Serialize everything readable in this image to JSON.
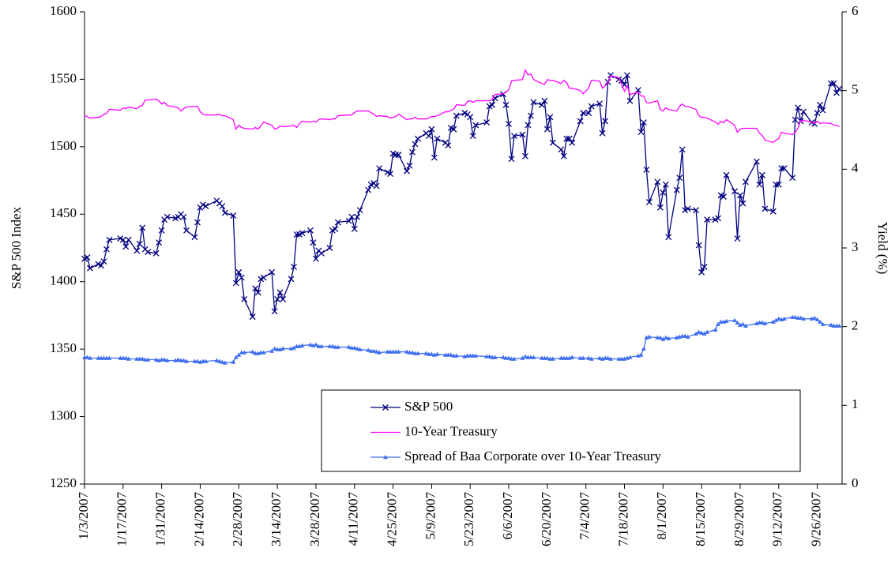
{
  "chart_data": {
    "type": "line",
    "y_label": "S&P 500 Index",
    "y2_label": "Yield (%)",
    "x": [
      "1/3/2007",
      "1/4/2007",
      "1/5/2007",
      "1/8/2007",
      "1/9/2007",
      "1/10/2007",
      "1/11/2007",
      "1/12/2007",
      "1/16/2007",
      "1/17/2007",
      "1/18/2007",
      "1/19/2007",
      "1/22/2007",
      "1/23/2007",
      "1/24/2007",
      "1/25/2007",
      "1/26/2007",
      "1/29/2007",
      "1/30/2007",
      "1/31/2007",
      "2/1/2007",
      "2/2/2007",
      "2/5/2007",
      "2/6/2007",
      "2/7/2007",
      "2/8/2007",
      "2/9/2007",
      "2/12/2007",
      "2/13/2007",
      "2/14/2007",
      "2/15/2007",
      "2/16/2007",
      "2/20/2007",
      "2/21/2007",
      "2/22/2007",
      "2/23/2007",
      "2/26/2007",
      "2/27/2007",
      "2/28/2007",
      "3/1/2007",
      "3/2/2007",
      "3/5/2007",
      "3/6/2007",
      "3/7/2007",
      "3/8/2007",
      "3/9/2007",
      "3/12/2007",
      "3/13/2007",
      "3/14/2007",
      "3/15/2007",
      "3/16/2007",
      "3/19/2007",
      "3/20/2007",
      "3/21/2007",
      "3/22/2007",
      "3/23/2007",
      "3/26/2007",
      "3/27/2007",
      "3/28/2007",
      "3/29/2007",
      "3/30/2007",
      "4/2/2007",
      "4/3/2007",
      "4/4/2007",
      "4/5/2007",
      "4/9/2007",
      "4/10/2007",
      "4/11/2007",
      "4/12/2007",
      "4/13/2007",
      "4/16/2007",
      "4/17/2007",
      "4/18/2007",
      "4/19/2007",
      "4/20/2007",
      "4/23/2007",
      "4/24/2007",
      "4/25/2007",
      "4/26/2007",
      "4/27/2007",
      "4/30/2007",
      "5/1/2007",
      "5/2/2007",
      "5/3/2007",
      "5/4/2007",
      "5/7/2007",
      "5/8/2007",
      "5/9/2007",
      "5/10/2007",
      "5/11/2007",
      "5/14/2007",
      "5/15/2007",
      "5/16/2007",
      "5/17/2007",
      "5/18/2007",
      "5/21/2007",
      "5/22/2007",
      "5/23/2007",
      "5/24/2007",
      "5/25/2007",
      "5/29/2007",
      "5/30/2007",
      "5/31/2007",
      "6/1/2007",
      "6/4/2007",
      "6/5/2007",
      "6/6/2007",
      "6/7/2007",
      "6/8/2007",
      "6/11/2007",
      "6/12/2007",
      "6/13/2007",
      "6/14/2007",
      "6/15/2007",
      "6/18/2007",
      "6/19/2007",
      "6/20/2007",
      "6/21/2007",
      "6/22/2007",
      "6/25/2007",
      "6/26/2007",
      "6/27/2007",
      "6/28/2007",
      "6/29/2007",
      "7/2/2007",
      "7/3/2007",
      "7/5/2007",
      "7/6/2007",
      "7/9/2007",
      "7/10/2007",
      "7/11/2007",
      "7/12/2007",
      "7/13/2007",
      "7/16/2007",
      "7/17/2007",
      "7/18/2007",
      "7/19/2007",
      "7/20/2007",
      "7/23/2007",
      "7/24/2007",
      "7/25/2007",
      "7/26/2007",
      "7/27/2007",
      "7/30/2007",
      "7/31/2007",
      "8/1/2007",
      "8/2/2007",
      "8/3/2007",
      "8/6/2007",
      "8/7/2007",
      "8/8/2007",
      "8/9/2007",
      "8/10/2007",
      "8/13/2007",
      "8/14/2007",
      "8/15/2007",
      "8/16/2007",
      "8/17/2007",
      "8/20/2007",
      "8/21/2007",
      "8/22/2007",
      "8/23/2007",
      "8/24/2007",
      "8/27/2007",
      "8/28/2007",
      "8/29/2007",
      "8/30/2007",
      "8/31/2007",
      "9/4/2007",
      "9/5/2007",
      "9/6/2007",
      "9/7/2007",
      "9/10/2007",
      "9/11/2007",
      "9/12/2007",
      "9/13/2007",
      "9/14/2007",
      "9/17/2007",
      "9/18/2007",
      "9/19/2007",
      "9/20/2007",
      "9/21/2007",
      "9/24/2007",
      "9/25/2007",
      "9/26/2007",
      "9/27/2007",
      "9/28/2007",
      "10/1/2007",
      "10/2/2007",
      "10/3/2007",
      "10/4/2007"
    ],
    "xlim": [
      "1/3/2007",
      "10/5/2007"
    ],
    "xticks": [
      "1/3/2007",
      "1/17/2007",
      "1/31/2007",
      "2/14/2007",
      "2/28/2007",
      "3/14/2007",
      "3/28/2007",
      "4/11/2007",
      "4/25/2007",
      "5/9/2007",
      "5/23/2007",
      "6/6/2007",
      "6/20/2007",
      "7/4/2007",
      "7/18/2007",
      "8/1/2007",
      "8/15/2007",
      "8/29/2007",
      "9/12/2007",
      "9/26/2007"
    ],
    "ylim": [
      1250,
      1600
    ],
    "yticks": [
      1250,
      1300,
      1350,
      1400,
      1450,
      1500,
      1550,
      1600
    ],
    "y2lim": [
      0,
      6
    ],
    "y2ticks": [
      0,
      1,
      2,
      3,
      4,
      5,
      6
    ],
    "series": [
      {
        "name": "S&P 500",
        "color": "#000080",
        "marker": "x",
        "values": [
          1417,
          1418,
          1410,
          1413,
          1412,
          1415,
          1424,
          1431,
          1432,
          1431,
          1426,
          1431,
          1423,
          1428,
          1440,
          1424,
          1422,
          1421,
          1429,
          1438,
          1446,
          1448,
          1447,
          1448,
          1450,
          1448,
          1438,
          1433,
          1444,
          1455,
          1457,
          1456,
          1460,
          1458,
          1456,
          1451,
          1449,
          1399,
          1407,
          1403,
          1387,
          1374,
          1395,
          1392,
          1402,
          1403,
          1407,
          1378,
          1387,
          1392,
          1387,
          1402,
          1411,
          1435,
          1435,
          1436,
          1438,
          1429,
          1417,
          1423,
          1421,
          1425,
          1438,
          1439,
          1444,
          1445,
          1448,
          1439,
          1448,
          1453,
          1468,
          1472,
          1473,
          1471,
          1484,
          1481,
          1480,
          1495,
          1494,
          1494,
          1482,
          1486,
          1496,
          1502,
          1506,
          1510,
          1508,
          1513,
          1492,
          1506,
          1503,
          1501,
          1514,
          1513,
          1523,
          1525,
          1524,
          1522,
          1508,
          1516,
          1518,
          1530,
          1531,
          1536,
          1539,
          1531,
          1517,
          1491,
          1508,
          1509,
          1493,
          1516,
          1523,
          1533,
          1531,
          1534,
          1513,
          1522,
          1503,
          1498,
          1493,
          1506,
          1506,
          1503,
          1519,
          1525,
          1525,
          1530,
          1532,
          1510,
          1519,
          1548,
          1553,
          1550,
          1549,
          1546,
          1553,
          1534,
          1542,
          1511,
          1518,
          1483,
          1459,
          1474,
          1455,
          1466,
          1472,
          1433,
          1468,
          1477,
          1498,
          1453,
          1454,
          1453,
          1427,
          1407,
          1411,
          1446,
          1446,
          1447,
          1464,
          1463,
          1479,
          1467,
          1432,
          1464,
          1458,
          1474,
          1489,
          1472,
          1479,
          1454,
          1452,
          1472,
          1472,
          1484,
          1484,
          1477,
          1520,
          1529,
          1519,
          1526,
          1518,
          1517,
          1525,
          1531,
          1527,
          1547,
          1547,
          1540,
          1543
        ]
      },
      {
        "name": "10-Year Treasury",
        "color": "#ff00ff",
        "axis": "y2",
        "values": [
          4.68,
          4.67,
          4.65,
          4.66,
          4.67,
          4.7,
          4.71,
          4.76,
          4.75,
          4.78,
          4.77,
          4.79,
          4.77,
          4.8,
          4.81,
          4.88,
          4.88,
          4.89,
          4.87,
          4.83,
          4.85,
          4.81,
          4.79,
          4.78,
          4.74,
          4.77,
          4.79,
          4.8,
          4.8,
          4.73,
          4.7,
          4.69,
          4.69,
          4.7,
          4.68,
          4.68,
          4.63,
          4.51,
          4.56,
          4.53,
          4.52,
          4.51,
          4.53,
          4.51,
          4.55,
          4.6,
          4.56,
          4.51,
          4.52,
          4.55,
          4.54,
          4.55,
          4.56,
          4.53,
          4.58,
          4.61,
          4.6,
          4.61,
          4.6,
          4.63,
          4.64,
          4.63,
          4.64,
          4.64,
          4.68,
          4.69,
          4.69,
          4.72,
          4.74,
          4.74,
          4.74,
          4.72,
          4.7,
          4.67,
          4.68,
          4.67,
          4.65,
          4.66,
          4.67,
          4.7,
          4.63,
          4.64,
          4.64,
          4.66,
          4.64,
          4.64,
          4.65,
          4.67,
          4.67,
          4.68,
          4.73,
          4.73,
          4.75,
          4.76,
          4.82,
          4.81,
          4.86,
          4.87,
          4.85,
          4.87,
          4.87,
          4.87,
          4.89,
          4.95,
          4.96,
          4.98,
          5.01,
          5.12,
          5.13,
          5.14,
          5.26,
          5.2,
          5.21,
          5.14,
          5.09,
          5.08,
          5.14,
          5.13,
          5.13,
          5.09,
          5.13,
          5.1,
          5.03,
          5.03,
          5.0,
          4.96,
          5.03,
          5.13,
          5.12,
          5.03,
          5.06,
          5.1,
          5.19,
          5.16,
          5.08,
          4.99,
          5.06,
          4.95,
          4.98,
          4.93,
          4.93,
          4.85,
          4.84,
          4.87,
          4.76,
          4.74,
          4.78,
          4.76,
          4.74,
          4.8,
          4.83,
          4.8,
          4.8,
          4.76,
          4.68,
          4.66,
          4.66,
          4.65,
          4.6,
          4.57,
          4.61,
          4.59,
          4.63,
          4.56,
          4.47,
          4.51,
          4.52,
          4.52,
          4.52,
          4.46,
          4.43,
          4.37,
          4.34,
          4.37,
          4.39,
          4.47,
          4.46,
          4.44,
          4.47,
          4.52,
          4.62,
          4.62,
          4.6,
          4.58,
          4.61,
          4.58,
          4.59,
          4.58,
          4.56,
          4.56,
          4.54
        ]
      },
      {
        "name": "Spread of Baa Corporate over 10-Year Treasury",
        "color": "#3f6fef",
        "axis": "y2",
        "marker": "triangle",
        "values": [
          1.61,
          1.61,
          1.6,
          1.6,
          1.6,
          1.6,
          1.6,
          1.6,
          1.6,
          1.6,
          1.6,
          1.59,
          1.59,
          1.59,
          1.59,
          1.58,
          1.58,
          1.58,
          1.57,
          1.58,
          1.58,
          1.57,
          1.57,
          1.58,
          1.57,
          1.57,
          1.56,
          1.56,
          1.56,
          1.55,
          1.56,
          1.56,
          1.57,
          1.56,
          1.55,
          1.54,
          1.55,
          1.61,
          1.64,
          1.67,
          1.67,
          1.68,
          1.66,
          1.66,
          1.67,
          1.67,
          1.69,
          1.72,
          1.71,
          1.71,
          1.72,
          1.72,
          1.73,
          1.75,
          1.75,
          1.76,
          1.77,
          1.76,
          1.77,
          1.75,
          1.75,
          1.75,
          1.75,
          1.74,
          1.74,
          1.74,
          1.73,
          1.73,
          1.72,
          1.71,
          1.7,
          1.69,
          1.69,
          1.68,
          1.67,
          1.68,
          1.68,
          1.68,
          1.68,
          1.68,
          1.68,
          1.67,
          1.67,
          1.66,
          1.66,
          1.66,
          1.65,
          1.65,
          1.64,
          1.65,
          1.64,
          1.64,
          1.64,
          1.63,
          1.63,
          1.62,
          1.63,
          1.63,
          1.63,
          1.63,
          1.62,
          1.62,
          1.61,
          1.61,
          1.61,
          1.6,
          1.6,
          1.59,
          1.59,
          1.6,
          1.62,
          1.61,
          1.61,
          1.61,
          1.6,
          1.6,
          1.6,
          1.59,
          1.59,
          1.6,
          1.6,
          1.6,
          1.6,
          1.61,
          1.6,
          1.6,
          1.6,
          1.59,
          1.6,
          1.59,
          1.6,
          1.6,
          1.59,
          1.59,
          1.59,
          1.59,
          1.6,
          1.61,
          1.63,
          1.64,
          1.72,
          1.86,
          1.87,
          1.86,
          1.86,
          1.84,
          1.86,
          1.85,
          1.86,
          1.87,
          1.88,
          1.88,
          1.87,
          1.91,
          1.93,
          1.92,
          1.91,
          1.93,
          1.96,
          2.03,
          2.06,
          2.06,
          2.07,
          2.08,
          2.05,
          2.02,
          2.03,
          2.01,
          2.04,
          2.05,
          2.05,
          2.04,
          2.06,
          2.08,
          2.1,
          2.09,
          2.1,
          2.12,
          2.12,
          2.11,
          2.11,
          2.1,
          2.1,
          2.11,
          2.09,
          2.06,
          2.03,
          2.02,
          2.01,
          2.01,
          2.01
        ]
      }
    ]
  }
}
